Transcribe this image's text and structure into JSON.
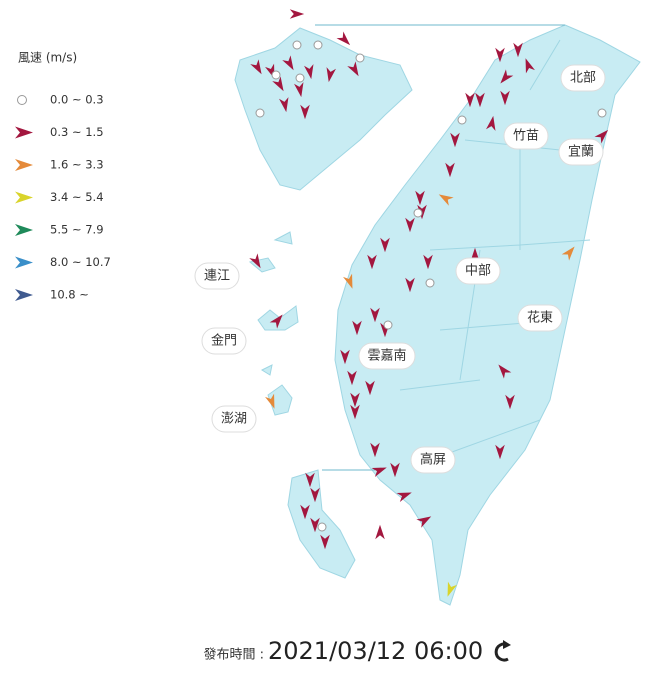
{
  "legend": {
    "title": "風速 (m/s)",
    "items": [
      {
        "label": "0.0 ~ 0.3",
        "color": "#999999",
        "symbol": "circle"
      },
      {
        "label": "0.3 ~ 1.5",
        "color": "#a3173f",
        "symbol": "arrow"
      },
      {
        "label": "1.6 ~ 3.3",
        "color": "#e48a3a",
        "symbol": "arrow"
      },
      {
        "label": "3.4 ~ 5.4",
        "color": "#d9d42b",
        "symbol": "arrow"
      },
      {
        "label": "5.5 ~ 7.9",
        "color": "#1f8a5a",
        "symbol": "arrow"
      },
      {
        "label": "8.0 ~ 10.7",
        "color": "#3a8fc9",
        "symbol": "arrow"
      },
      {
        "label": "10.8 ~",
        "color": "#3f5a8f",
        "symbol": "arrow"
      }
    ]
  },
  "regions": [
    "北部",
    "竹苗",
    "宜蘭",
    "中部",
    "花東",
    "雲嘉南",
    "高屏",
    "連江",
    "金門",
    "澎湖"
  ],
  "release": {
    "label": "發布時間 :",
    "time": "2021/03/12 06:00"
  }
}
